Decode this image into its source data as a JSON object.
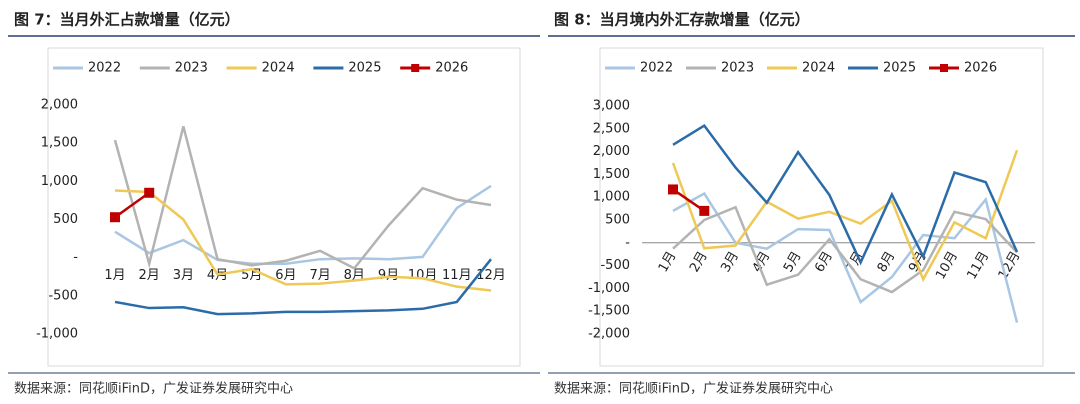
{
  "chart_data": [
    {
      "type": "line",
      "title": "图 7：当月外汇占款增量（亿元）",
      "source": "数据来源：同花顺iFinD，广发证券发展研究中心",
      "categories": [
        "1月",
        "2月",
        "3月",
        "4月",
        "5月",
        "6月",
        "7月",
        "8月",
        "9月",
        "10月",
        "11月",
        "12月"
      ],
      "ylim": [
        -1000,
        2000
      ],
      "yticks": [
        {
          "value": -1000,
          "label": "-1,000"
        },
        -500,
        {
          "value": 0,
          "label": "-"
        },
        500,
        {
          "value": 1000,
          "label": "1,000"
        },
        {
          "value": 1500,
          "label": "1,500"
        },
        {
          "value": 2000,
          "label": "2,000"
        }
      ],
      "zero_line": false,
      "series": [
        {
          "name": "2022",
          "color": "#a9c6e3",
          "values": [
            340,
            60,
            230,
            -30,
            -80,
            -80,
            -20,
            -10,
            -20,
            10,
            650,
            940
          ]
        },
        {
          "name": "2023",
          "color": "#b3b3b3",
          "values": [
            1540,
            -80,
            1720,
            -20,
            -100,
            -40,
            90,
            -140,
            420,
            910,
            760,
            690
          ]
        },
        {
          "name": "2024",
          "color": "#efc855",
          "values": [
            880,
            860,
            500,
            -220,
            -150,
            -350,
            -340,
            -300,
            -250,
            -270,
            -380,
            -430
          ]
        },
        {
          "name": "2025",
          "color": "#2b6ca8",
          "values": [
            -580,
            -660,
            -650,
            -740,
            -730,
            -710,
            -710,
            -700,
            -690,
            -670,
            -580,
            -20
          ]
        },
        {
          "name": "2026",
          "color": "#c00000",
          "marker": "square",
          "values": [
            530,
            850,
            null,
            null,
            null,
            null,
            null,
            null,
            null,
            null,
            null,
            null
          ]
        }
      ]
    },
    {
      "type": "line",
      "title": "图 8：当月境内外汇存款增量（亿元）",
      "source": "数据来源：同花顺iFinD，广发证券发展研究中心",
      "categories": [
        "1月",
        "2月",
        "3月",
        "4月",
        "5月",
        "6月",
        "7月",
        "8月",
        "9月",
        "10月",
        "11月",
        "12月"
      ],
      "ylim": [
        -2000,
        3000
      ],
      "yticks": [
        {
          "value": -2000,
          "label": "-2,000"
        },
        {
          "value": -1500,
          "label": "-1,500"
        },
        {
          "value": -1000,
          "label": "-1,000"
        },
        -500,
        {
          "value": 0,
          "label": "-"
        },
        500,
        {
          "value": 1000,
          "label": "1,000"
        },
        {
          "value": 1500,
          "label": "1,500"
        },
        {
          "value": 2000,
          "label": "2,000"
        },
        {
          "value": 2500,
          "label": "2,500"
        },
        {
          "value": 3000,
          "label": "3,000"
        }
      ],
      "zero_line": true,
      "series": [
        {
          "name": "2022",
          "color": "#a9c6e3",
          "values": [
            700,
            1080,
            0,
            -130,
            300,
            280,
            -1300,
            -750,
            170,
            100,
            950,
            -1750
          ]
        },
        {
          "name": "2023",
          "color": "#b3b3b3",
          "values": [
            -130,
            500,
            780,
            -920,
            -700,
            80,
            -800,
            -1080,
            -600,
            680,
            520,
            -210
          ]
        },
        {
          "name": "2024",
          "color": "#efc855",
          "values": [
            1750,
            -120,
            -60,
            900,
            530,
            680,
            420,
            920,
            -800,
            450,
            100,
            2030
          ]
        },
        {
          "name": "2025",
          "color": "#2b6ca8",
          "values": [
            2150,
            2570,
            1650,
            880,
            1990,
            1050,
            -430,
            1060,
            -300,
            1540,
            1330,
            -200
          ]
        },
        {
          "name": "2026",
          "color": "#c00000",
          "marker": "square",
          "values": [
            1170,
            700,
            null,
            null,
            null,
            null,
            null,
            null,
            null,
            null,
            null,
            null
          ]
        }
      ]
    }
  ]
}
